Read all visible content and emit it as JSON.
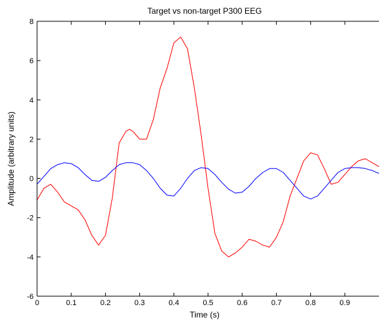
{
  "chart_data": {
    "type": "line",
    "title": "Target vs non-target P300 EEG",
    "xlabel": "Time (s)",
    "ylabel": "Amplitude (arbitrary units)",
    "xlim": [
      0,
      1
    ],
    "ylim": [
      -6,
      8
    ],
    "xticks": [
      0,
      0.1,
      0.2,
      0.3,
      0.4,
      0.5,
      0.6,
      0.7,
      0.8,
      0.9
    ],
    "xtick_labels": [
      "0",
      "0.1",
      "0.2",
      "0.3",
      "0.4",
      "0.5",
      "0.6",
      "0.7",
      "0.8",
      "0.9"
    ],
    "yticks": [
      -6,
      -4,
      -2,
      0,
      2,
      4,
      6,
      8
    ],
    "ytick_labels": [
      "-6",
      "-4",
      "-2",
      "0",
      "2",
      "4",
      "6",
      "8"
    ],
    "grid": false,
    "legend": "none",
    "series": [
      {
        "color": "#ff0000",
        "x": [
          0,
          0.02,
          0.04,
          0.06,
          0.08,
          0.1,
          0.12,
          0.14,
          0.16,
          0.18,
          0.2,
          0.22,
          0.24,
          0.26,
          0.27,
          0.28,
          0.3,
          0.32,
          0.34,
          0.36,
          0.38,
          0.4,
          0.42,
          0.44,
          0.46,
          0.48,
          0.5,
          0.52,
          0.54,
          0.56,
          0.58,
          0.6,
          0.62,
          0.64,
          0.66,
          0.68,
          0.7,
          0.72,
          0.74,
          0.76,
          0.78,
          0.8,
          0.82,
          0.84,
          0.86,
          0.88,
          0.9,
          0.92,
          0.94,
          0.96,
          0.98,
          1.0
        ],
        "y": [
          -1.1,
          -0.5,
          -0.3,
          -0.7,
          -1.2,
          -1.4,
          -1.6,
          -2.1,
          -2.9,
          -3.4,
          -2.9,
          -1.0,
          1.8,
          2.4,
          2.5,
          2.4,
          2.0,
          2.0,
          3.0,
          4.6,
          5.6,
          6.9,
          7.2,
          6.6,
          4.6,
          2.2,
          -0.5,
          -2.8,
          -3.7,
          -4.0,
          -3.8,
          -3.5,
          -3.1,
          -3.2,
          -3.4,
          -3.5,
          -3.0,
          -2.2,
          -0.9,
          0.0,
          0.9,
          1.3,
          1.2,
          0.5,
          -0.3,
          -0.2,
          0.2,
          0.6,
          0.9,
          1.0,
          0.8,
          0.6
        ]
      },
      {
        "color": "#0000ff",
        "x": [
          0,
          0.02,
          0.04,
          0.06,
          0.08,
          0.1,
          0.12,
          0.14,
          0.16,
          0.18,
          0.2,
          0.22,
          0.24,
          0.26,
          0.28,
          0.3,
          0.32,
          0.34,
          0.36,
          0.38,
          0.4,
          0.42,
          0.44,
          0.46,
          0.48,
          0.5,
          0.52,
          0.54,
          0.56,
          0.58,
          0.6,
          0.62,
          0.64,
          0.66,
          0.68,
          0.7,
          0.72,
          0.74,
          0.76,
          0.78,
          0.8,
          0.82,
          0.84,
          0.86,
          0.88,
          0.9,
          0.92,
          0.94,
          0.96,
          0.98,
          1.0
        ],
        "y": [
          -0.3,
          0.1,
          0.5,
          0.7,
          0.8,
          0.75,
          0.55,
          0.2,
          -0.1,
          -0.15,
          0.05,
          0.4,
          0.7,
          0.8,
          0.8,
          0.7,
          0.4,
          0.0,
          -0.5,
          -0.85,
          -0.9,
          -0.5,
          0.0,
          0.4,
          0.55,
          0.5,
          0.2,
          -0.2,
          -0.55,
          -0.75,
          -0.7,
          -0.4,
          0.0,
          0.3,
          0.5,
          0.5,
          0.3,
          -0.1,
          -0.5,
          -0.9,
          -1.05,
          -0.9,
          -0.5,
          -0.1,
          0.3,
          0.5,
          0.55,
          0.55,
          0.5,
          0.4,
          0.25
        ]
      }
    ]
  }
}
